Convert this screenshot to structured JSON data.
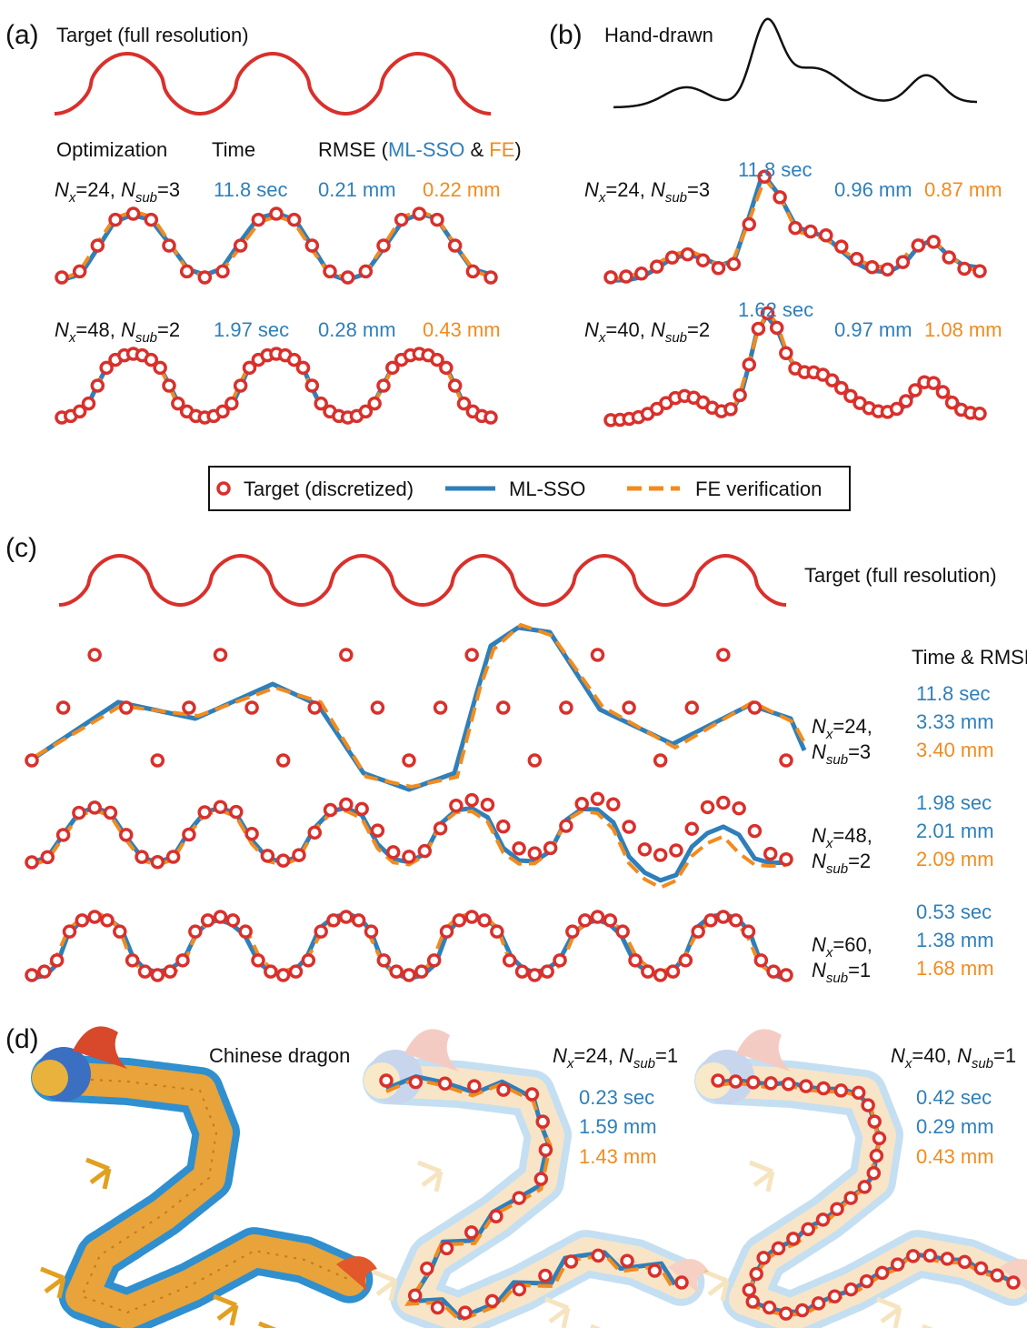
{
  "panel_a": {
    "letter": "(a)",
    "target_title": "Target (full resolution)",
    "headers": {
      "optimization": "Optimization",
      "time": "Time",
      "rmse": "RMSE (",
      "ml": "ML-SSO",
      "amp": " & ",
      "fe": "FE",
      "close": ")"
    },
    "rows": [
      {
        "label": {
          "n1": "N",
          "s1": "x",
          "e1": "=24, ",
          "n2": "N",
          "s2": "sub",
          "e2": "=3"
        },
        "time": "11.8 sec",
        "rmse_ml": "0.21 mm",
        "rmse_fe": "0.22 mm"
      },
      {
        "label": {
          "n1": "N",
          "s1": "x",
          "e1": "=48, ",
          "n2": "N",
          "s2": "sub",
          "e2": "=2"
        },
        "time": "1.97 sec",
        "rmse_ml": "0.28 mm",
        "rmse_fe": "0.43 mm"
      }
    ]
  },
  "panel_b": {
    "letter": "(b)",
    "target_title": "Hand-drawn",
    "rows": [
      {
        "label": {
          "n1": "N",
          "s1": "x",
          "e1": "=24, ",
          "n2": "N",
          "s2": "sub",
          "e2": "=3"
        },
        "time": "11.8 sec",
        "rmse_ml": "0.96 mm",
        "rmse_fe": "0.87 mm"
      },
      {
        "label": {
          "n1": "N",
          "s1": "x",
          "e1": "=40, ",
          "n2": "N",
          "s2": "sub",
          "e2": "=2"
        },
        "time": "1.62 sec",
        "rmse_ml": "0.97 mm",
        "rmse_fe": "1.08 mm"
      }
    ]
  },
  "legend": {
    "target": "Target (discretized)",
    "ml": "ML-SSO",
    "fe": "FE verification"
  },
  "panel_c": {
    "letter": "(c)",
    "target_title": "Target (full resolution)",
    "heading": "Time & RMSE",
    "rows": [
      {
        "label": {
          "n1": "N",
          "s1": "x",
          "e1": "=24,",
          "n2": "N",
          "s2": "sub",
          "e2": "=3"
        },
        "time": "11.8 sec",
        "rmse_ml": "3.33 mm",
        "rmse_fe": "3.40 mm"
      },
      {
        "label": {
          "n1": "N",
          "s1": "x",
          "e1": "=48,",
          "n2": "N",
          "s2": "sub",
          "e2": "=2"
        },
        "time": "1.98 sec",
        "rmse_ml": "2.01 mm",
        "rmse_fe": "2.09 mm"
      },
      {
        "label": {
          "n1": "N",
          "s1": "x",
          "e1": "=60,",
          "n2": "N",
          "s2": "sub",
          "e2": "=1"
        },
        "time": "0.53 sec",
        "rmse_ml": "1.38 mm",
        "rmse_fe": "1.68 mm"
      }
    ]
  },
  "panel_d": {
    "letter": "(d)",
    "title": "Chinese dragon",
    "rows": [
      {
        "label": {
          "n1": "N",
          "s1": "x",
          "e1": "=24, ",
          "n2": "N",
          "s2": "sub",
          "e2": "=1"
        },
        "time": "0.23 sec",
        "rmse_ml": "1.59 mm",
        "rmse_fe": "1.43 mm"
      },
      {
        "label": {
          "n1": "N",
          "s1": "x",
          "e1": "=40, ",
          "n2": "N",
          "s2": "sub",
          "e2": "=1"
        },
        "time": "0.42 sec",
        "rmse_ml": "0.29 mm",
        "rmse_fe": "0.43 mm"
      }
    ]
  }
}
